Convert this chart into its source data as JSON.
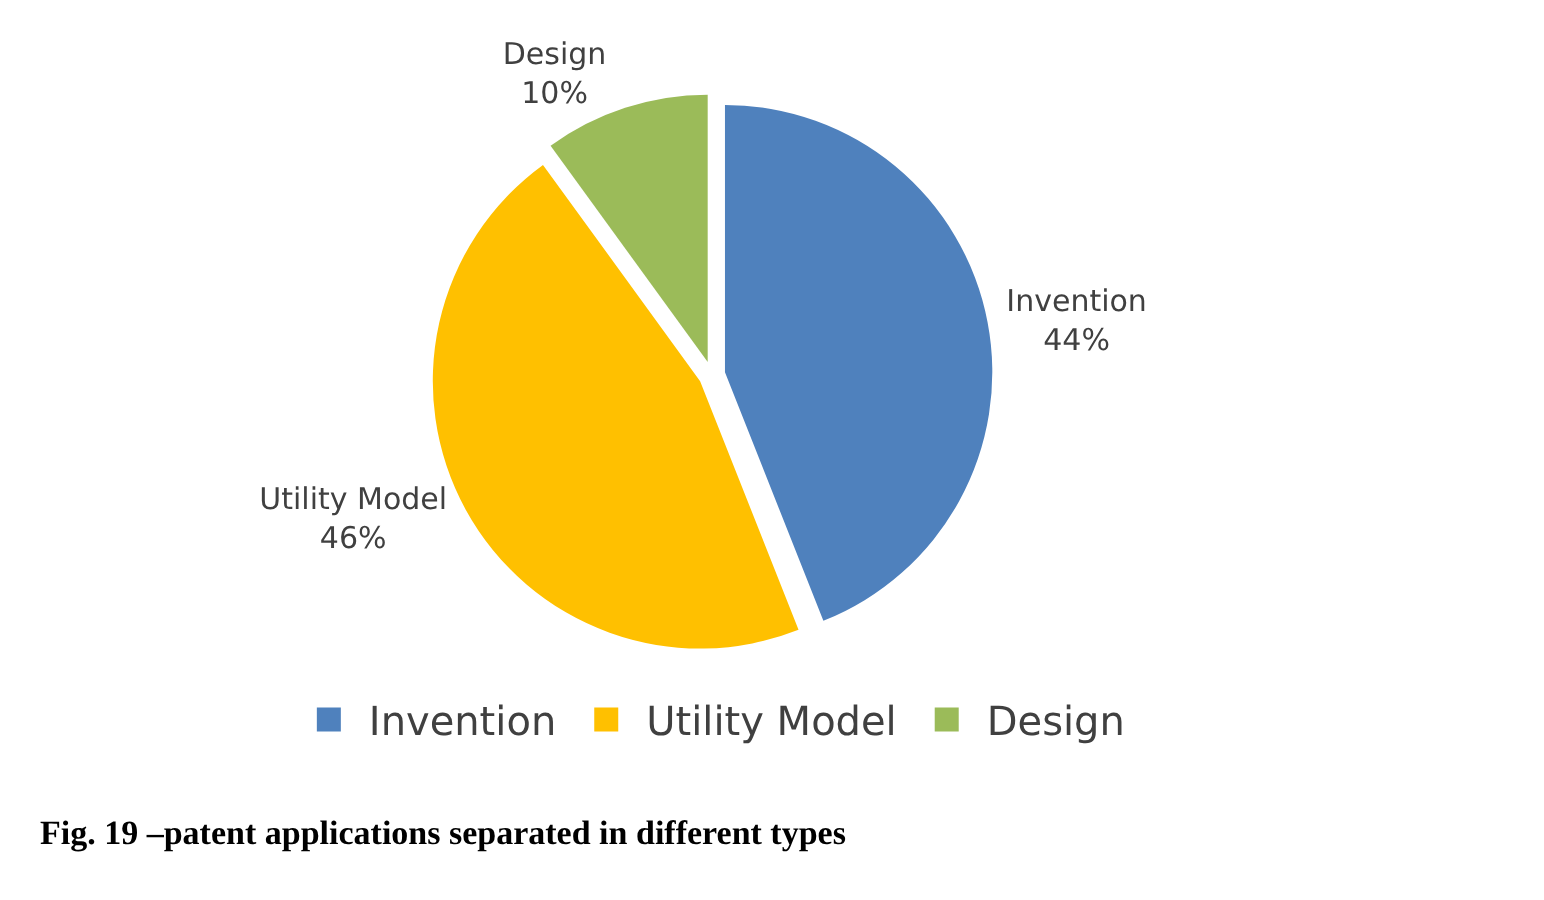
{
  "chart_data": {
    "type": "pie",
    "categories": [
      "Invention",
      "Utility Model",
      "Design"
    ],
    "values": [
      44,
      46,
      10
    ],
    "colors": [
      "#4f81bd",
      "#ffc000",
      "#9bbb59"
    ],
    "value_labels": [
      "44%",
      "46%",
      "10%"
    ],
    "legend": "bottom",
    "annotations": [
      "Fig. 19 –patent applications separated in different types"
    ]
  }
}
